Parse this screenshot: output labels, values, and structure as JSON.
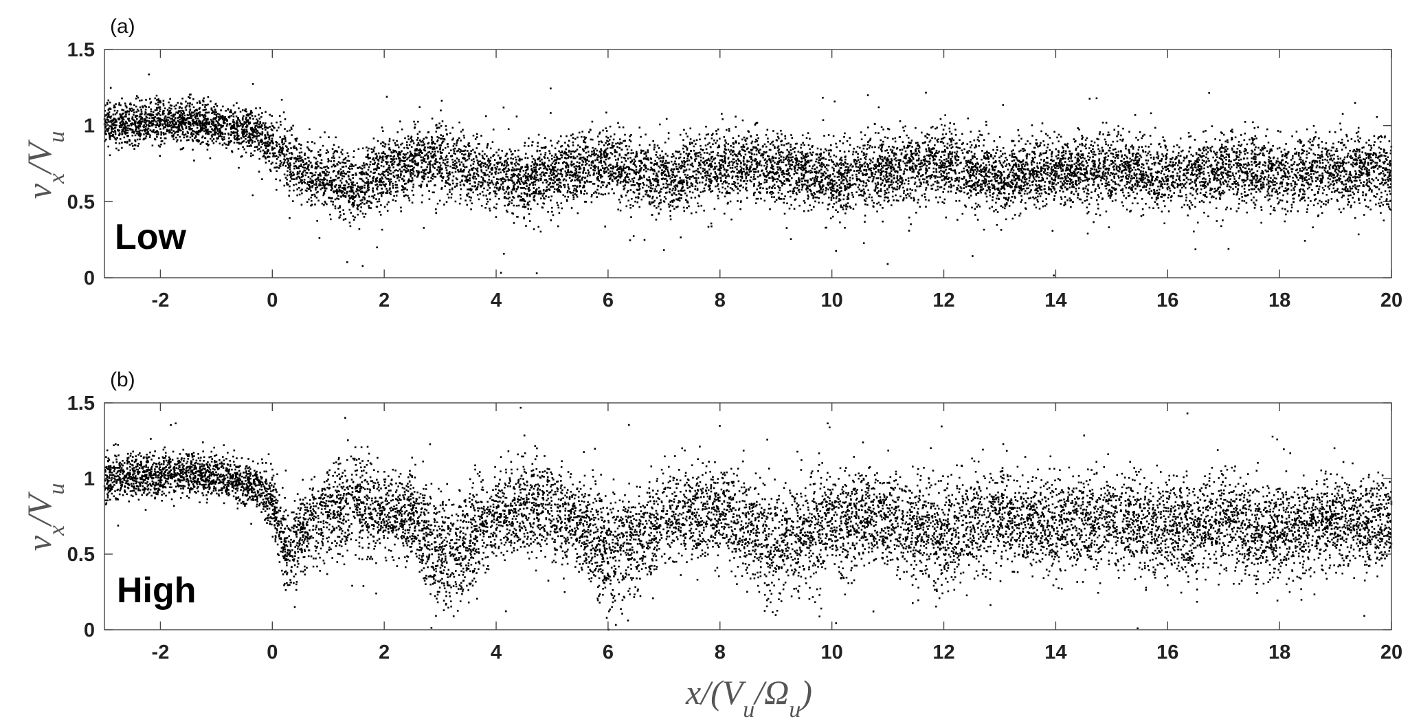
{
  "chart_data": [
    {
      "type": "scatter",
      "panel_letter": "(a)",
      "annotation": "Low",
      "xlabel": "",
      "ylabel": "v_x/V_u",
      "xlim": [
        -3,
        20
      ],
      "ylim": [
        0,
        1.5
      ],
      "xticks": [
        -2,
        0,
        2,
        4,
        6,
        8,
        10,
        12,
        14,
        16,
        18,
        20
      ],
      "yticks": [
        0,
        0.5,
        1,
        1.5
      ],
      "xtick_labels": [
        "-2",
        "0",
        "2",
        "4",
        "6",
        "8",
        "10",
        "12",
        "14",
        "16",
        "18",
        "20"
      ],
      "ytick_labels": [
        "0",
        "0.5",
        "1",
        "1.5"
      ],
      "grid": false,
      "density_profile": {
        "x": [
          -3,
          -2,
          -1,
          -0.3,
          0,
          0.5,
          1,
          1.5,
          2,
          3,
          4,
          4.5,
          5,
          6,
          7,
          8,
          9,
          10,
          11,
          12,
          13,
          14,
          15,
          16,
          17,
          18,
          19,
          20
        ],
        "y_center": [
          1.0,
          1.03,
          1.02,
          0.95,
          0.88,
          0.7,
          0.65,
          0.58,
          0.7,
          0.78,
          0.65,
          0.62,
          0.68,
          0.75,
          0.64,
          0.74,
          0.72,
          0.66,
          0.7,
          0.75,
          0.66,
          0.7,
          0.72,
          0.66,
          0.72,
          0.68,
          0.7,
          0.68
        ],
        "y_spread": [
          0.1,
          0.1,
          0.1,
          0.1,
          0.12,
          0.14,
          0.15,
          0.15,
          0.16,
          0.17,
          0.16,
          0.16,
          0.16,
          0.16,
          0.16,
          0.16,
          0.16,
          0.16,
          0.16,
          0.16,
          0.16,
          0.16,
          0.16,
          0.16,
          0.16,
          0.16,
          0.16,
          0.16
        ]
      }
    },
    {
      "type": "scatter",
      "panel_letter": "(b)",
      "annotation": "High",
      "xlabel": "x/(V_u/Ω_u)",
      "ylabel": "v_x/V_u",
      "xlim": [
        -3,
        20
      ],
      "ylim": [
        0,
        1.5
      ],
      "xticks": [
        -2,
        0,
        2,
        4,
        6,
        8,
        10,
        12,
        14,
        16,
        18,
        20
      ],
      "yticks": [
        0,
        0.5,
        1,
        1.5
      ],
      "xtick_labels": [
        "-2",
        "0",
        "2",
        "4",
        "6",
        "8",
        "10",
        "12",
        "14",
        "16",
        "18",
        "20"
      ],
      "ytick_labels": [
        "0",
        "0.5",
        "1",
        "1.5"
      ],
      "grid": false,
      "density_profile": {
        "x": [
          -3,
          -2,
          -1,
          -0.3,
          0,
          0.25,
          0.6,
          1.5,
          2.5,
          3.1,
          4,
          4.5,
          5.5,
          6,
          7,
          8,
          9,
          10,
          11,
          12,
          13,
          14,
          15,
          16,
          17,
          18,
          19,
          20
        ],
        "y_center": [
          1.0,
          1.03,
          1.02,
          0.95,
          0.85,
          0.5,
          0.68,
          0.85,
          0.72,
          0.45,
          0.75,
          0.82,
          0.72,
          0.5,
          0.72,
          0.8,
          0.55,
          0.72,
          0.75,
          0.6,
          0.75,
          0.68,
          0.72,
          0.66,
          0.72,
          0.64,
          0.72,
          0.7
        ],
        "y_spread": [
          0.1,
          0.1,
          0.1,
          0.1,
          0.14,
          0.2,
          0.18,
          0.22,
          0.2,
          0.28,
          0.2,
          0.22,
          0.2,
          0.28,
          0.2,
          0.22,
          0.28,
          0.22,
          0.22,
          0.26,
          0.22,
          0.22,
          0.22,
          0.22,
          0.22,
          0.22,
          0.22,
          0.22
        ]
      }
    }
  ]
}
